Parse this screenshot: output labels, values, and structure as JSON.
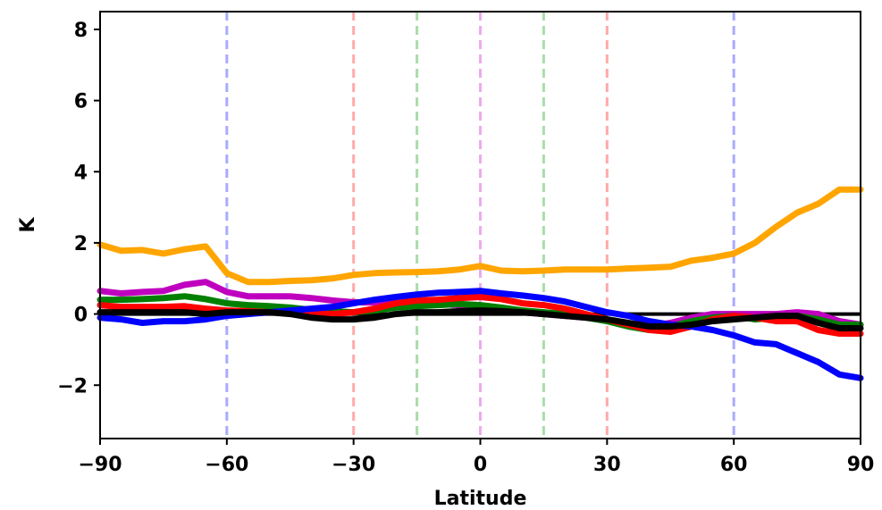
{
  "chart_data": {
    "type": "line",
    "title": "",
    "xlabel": "Latitude",
    "ylabel": "K",
    "xlim": [
      -90,
      90
    ],
    "ylim": [
      -3.5,
      8.5
    ],
    "xticks": [
      -90,
      -60,
      -30,
      0,
      30,
      60,
      90
    ],
    "yticks": [
      -2,
      0,
      2,
      4,
      6,
      8
    ],
    "xtick_labels": [
      "−90",
      "−60",
      "−30",
      "0",
      "30",
      "60",
      "90"
    ],
    "ytick_labels": [
      "−2",
      "0",
      "2",
      "4",
      "6",
      "8"
    ],
    "grid": false,
    "zero_line": 0,
    "vlines": [
      {
        "x": -60,
        "color": "#aaaaff"
      },
      {
        "x": -30,
        "color": "#ffaaaa"
      },
      {
        "x": -15,
        "color": "#aaddaa"
      },
      {
        "x": 0,
        "color": "#eeaaee"
      },
      {
        "x": 15,
        "color": "#aaddaa"
      },
      {
        "x": 30,
        "color": "#ffaaaa"
      },
      {
        "x": 60,
        "color": "#aaaaff"
      }
    ],
    "x": [
      -90,
      -85,
      -80,
      -75,
      -70,
      -65,
      -60,
      -55,
      -50,
      -45,
      -40,
      -35,
      -30,
      -25,
      -20,
      -15,
      -10,
      -5,
      0,
      5,
      10,
      15,
      20,
      25,
      30,
      35,
      40,
      45,
      50,
      55,
      60,
      65,
      70,
      75,
      80,
      85,
      90
    ],
    "series": [
      {
        "color": "#ffa500",
        "values": [
          1.95,
          1.78,
          1.8,
          1.7,
          1.82,
          1.9,
          1.15,
          0.9,
          0.9,
          0.93,
          0.95,
          1.0,
          1.1,
          1.15,
          1.17,
          1.18,
          1.2,
          1.25,
          1.35,
          1.22,
          1.2,
          1.22,
          1.25,
          1.25,
          1.25,
          1.28,
          1.3,
          1.33,
          1.5,
          1.58,
          1.7,
          2.0,
          2.45,
          2.85,
          3.1,
          3.5,
          3.5
        ]
      },
      {
        "color": "#bf00bf",
        "values": [
          0.65,
          0.58,
          0.62,
          0.65,
          0.82,
          0.9,
          0.62,
          0.5,
          0.5,
          0.5,
          0.45,
          0.38,
          0.33,
          0.32,
          0.3,
          0.3,
          0.28,
          0.25,
          0.2,
          0.12,
          0.05,
          0.0,
          -0.05,
          -0.1,
          -0.2,
          -0.3,
          -0.35,
          -0.25,
          -0.1,
          0.0,
          0.0,
          0.0,
          0.0,
          0.05,
          0.0,
          -0.2,
          -0.3
        ]
      },
      {
        "color": "#008000",
        "values": [
          0.4,
          0.4,
          0.42,
          0.45,
          0.5,
          0.42,
          0.3,
          0.25,
          0.22,
          0.18,
          0.12,
          0.08,
          0.05,
          0.1,
          0.18,
          0.22,
          0.25,
          0.28,
          0.25,
          0.18,
          0.1,
          0.05,
          0.0,
          -0.1,
          -0.2,
          -0.35,
          -0.45,
          -0.35,
          -0.2,
          -0.1,
          -0.05,
          -0.15,
          -0.1,
          -0.05,
          -0.15,
          -0.3,
          -0.3
        ]
      },
      {
        "color": "#ff0000",
        "values": [
          0.25,
          0.2,
          0.2,
          0.2,
          0.22,
          0.15,
          0.1,
          0.08,
          0.05,
          0.05,
          0.02,
          0.0,
          0.05,
          0.15,
          0.3,
          0.38,
          0.4,
          0.45,
          0.48,
          0.42,
          0.3,
          0.25,
          0.15,
          0.0,
          -0.15,
          -0.3,
          -0.45,
          -0.5,
          -0.35,
          -0.15,
          -0.05,
          -0.1,
          -0.2,
          -0.2,
          -0.45,
          -0.55,
          -0.55
        ]
      },
      {
        "color": "#0000ff",
        "values": [
          -0.1,
          -0.15,
          -0.25,
          -0.2,
          -0.2,
          -0.15,
          -0.05,
          0.0,
          0.05,
          0.1,
          0.15,
          0.2,
          0.3,
          0.4,
          0.48,
          0.55,
          0.6,
          0.62,
          0.65,
          0.58,
          0.52,
          0.45,
          0.35,
          0.2,
          0.05,
          -0.05,
          -0.2,
          -0.3,
          -0.35,
          -0.45,
          -0.6,
          -0.8,
          -0.85,
          -1.1,
          -1.35,
          -1.7,
          -1.8
        ]
      },
      {
        "color": "#000000",
        "values": [
          0.05,
          0.05,
          0.05,
          0.05,
          0.05,
          0.0,
          0.05,
          0.05,
          0.05,
          0.0,
          -0.1,
          -0.15,
          -0.15,
          -0.1,
          0.0,
          0.05,
          0.05,
          0.08,
          0.1,
          0.08,
          0.05,
          0.0,
          -0.05,
          -0.1,
          -0.15,
          -0.25,
          -0.35,
          -0.35,
          -0.3,
          -0.2,
          -0.15,
          -0.1,
          -0.05,
          -0.05,
          -0.25,
          -0.4,
          -0.4
        ]
      }
    ]
  }
}
